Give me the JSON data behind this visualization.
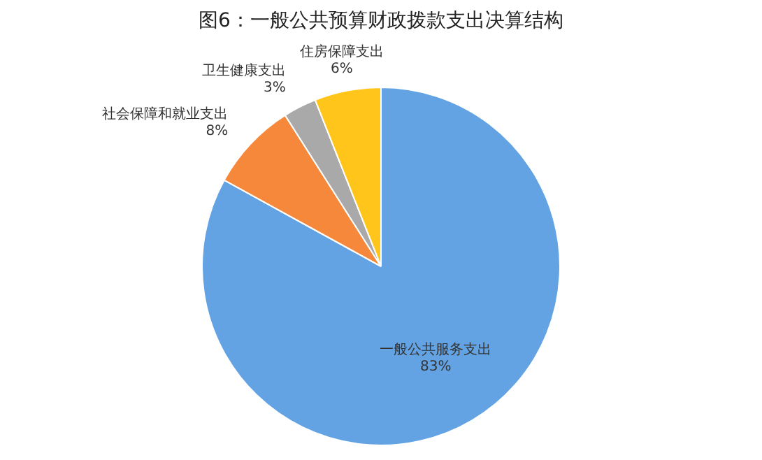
{
  "chart_data": {
    "type": "pie",
    "title": "图6：一般公共预算财政拨款支出决算结构",
    "categories": [
      "一般公共服务支出",
      "社会保障和就业支出",
      "卫生健康支出",
      "住房保障支出"
    ],
    "values": [
      83,
      8,
      3,
      6
    ],
    "colors": [
      "#63a3e3",
      "#f5883a",
      "#a9a9a9",
      "#ffc51a"
    ],
    "value_labels": [
      "83%",
      "8%",
      "3%",
      "6%"
    ],
    "legend": false
  }
}
